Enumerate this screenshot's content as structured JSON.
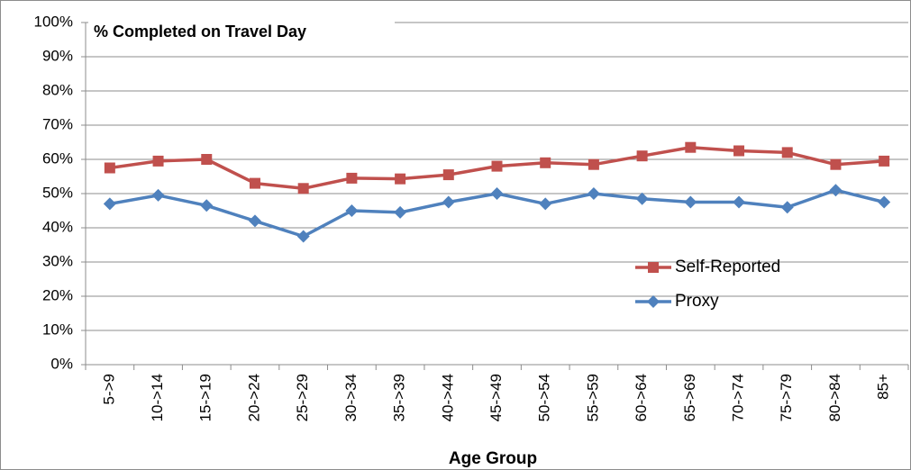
{
  "chart_data": {
    "type": "line",
    "title": "% Completed on Travel Day",
    "x_label": "Age Group",
    "categories": [
      "5->9",
      "10->14",
      "15->19",
      "20->24",
      "25->29",
      "30->34",
      "35->39",
      "40->44",
      "45->49",
      "50->54",
      "55->59",
      "60->64",
      "65->69",
      "70->74",
      "75->79",
      "80->84",
      "85+"
    ],
    "series": [
      {
        "name": "Self-Reported",
        "color": "#c0504d",
        "marker": "square",
        "values": [
          57.5,
          59.5,
          60,
          53,
          51.5,
          54.5,
          54.3,
          55.5,
          58,
          59,
          58.5,
          61,
          63.5,
          62.5,
          62,
          58.5,
          59.5
        ]
      },
      {
        "name": "Proxy",
        "color": "#4f81bd",
        "marker": "diamond",
        "values": [
          47,
          49.5,
          46.5,
          42,
          37.5,
          45,
          44.5,
          47.5,
          50,
          47,
          50,
          48.5,
          47.5,
          47.5,
          46,
          51,
          47.5
        ]
      }
    ],
    "ylim": [
      0,
      100
    ],
    "yticks": [
      {
        "value": 0,
        "label": "0%"
      },
      {
        "value": 10,
        "label": "10%"
      },
      {
        "value": 20,
        "label": "20%"
      },
      {
        "value": 30,
        "label": "30%"
      },
      {
        "value": 40,
        "label": "40%"
      },
      {
        "value": 50,
        "label": "50%"
      },
      {
        "value": 60,
        "label": "60%"
      },
      {
        "value": 70,
        "label": "70%"
      },
      {
        "value": 80,
        "label": "80%"
      },
      {
        "value": 90,
        "label": "90%"
      },
      {
        "value": 100,
        "label": "100%"
      }
    ],
    "grid": true,
    "legend": "right"
  }
}
